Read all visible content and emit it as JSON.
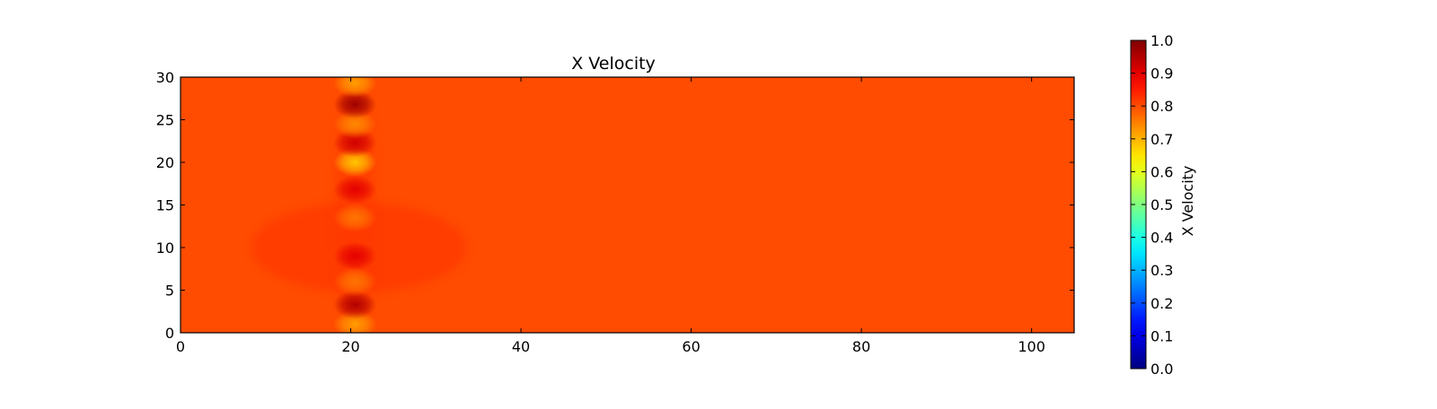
{
  "chart_data": {
    "type": "heatmap",
    "title": "X Velocity",
    "xlabel": "",
    "ylabel": "",
    "xlim": [
      0,
      105
    ],
    "ylim": [
      0,
      30
    ],
    "x_ticks": [
      "0",
      "20",
      "40",
      "60",
      "80",
      "100"
    ],
    "y_ticks": [
      "0",
      "5",
      "10",
      "15",
      "20",
      "25",
      "30"
    ],
    "grid": false,
    "colormap": "jet",
    "background_value": 0.8,
    "colorbar": {
      "label": "X Velocity",
      "range": [
        0.0,
        1.0
      ],
      "ticks": [
        "0.0",
        "0.1",
        "0.2",
        "0.3",
        "0.4",
        "0.5",
        "0.6",
        "0.7",
        "0.8",
        "0.9",
        "1.0"
      ]
    },
    "features": [
      {
        "x": 20.5,
        "y": 1.0,
        "value": 0.72
      },
      {
        "x": 20.5,
        "y": 3.3,
        "value": 0.95
      },
      {
        "x": 20.5,
        "y": 6.0,
        "value": 0.76
      },
      {
        "x": 20.5,
        "y": 9.0,
        "value": 0.9
      },
      {
        "x": 20.5,
        "y": 13.5,
        "value": 0.76
      },
      {
        "x": 20.5,
        "y": 16.8,
        "value": 0.9
      },
      {
        "x": 20.5,
        "y": 20.0,
        "value": 0.68
      },
      {
        "x": 20.5,
        "y": 22.3,
        "value": 0.92
      },
      {
        "x": 20.5,
        "y": 24.5,
        "value": 0.74
      },
      {
        "x": 20.5,
        "y": 26.8,
        "value": 0.97
      },
      {
        "x": 20.5,
        "y": 29.3,
        "value": 0.72
      }
    ]
  }
}
